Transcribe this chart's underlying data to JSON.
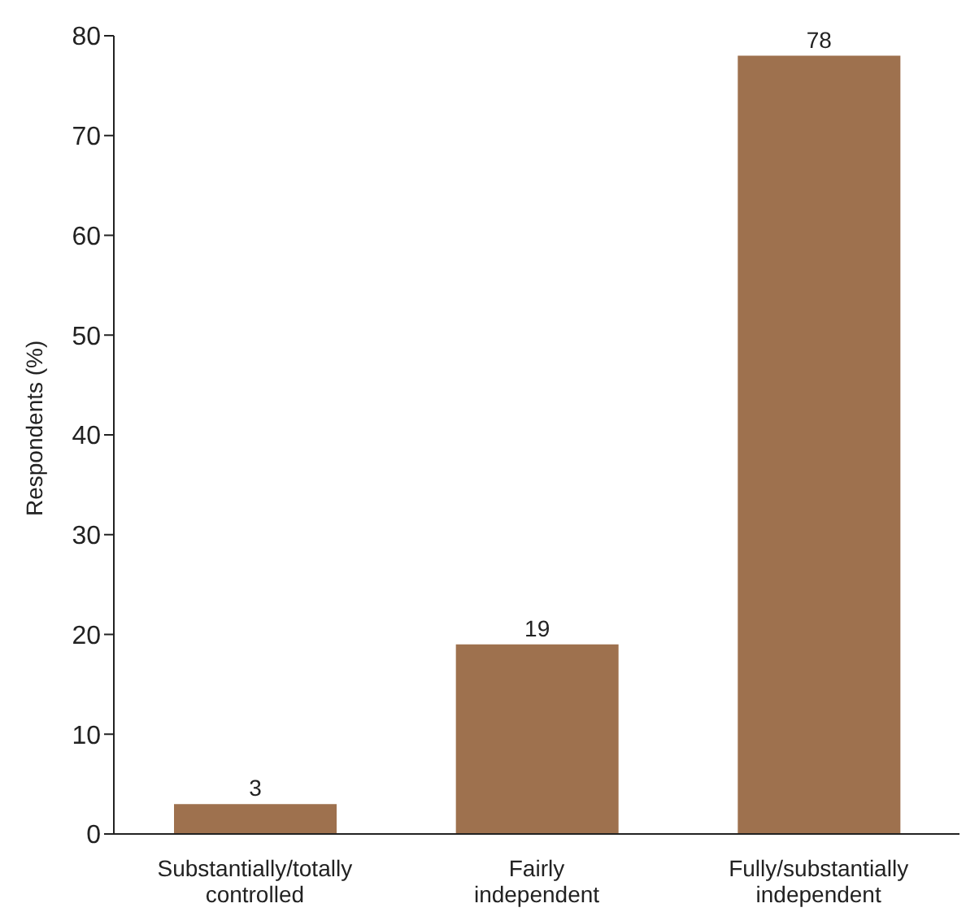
{
  "chart_data": {
    "type": "bar",
    "ylabel": "Respondents (%)",
    "categories": [
      "Substantially/totally controlled",
      "Fairly independent",
      "Fully/substantially independent"
    ],
    "values": [
      3,
      19,
      78
    ],
    "color": "#9e714e",
    "ylim": [
      0,
      80
    ],
    "yticks": [
      0,
      10,
      20,
      30,
      40,
      50,
      60,
      70,
      80
    ],
    "grid": false,
    "data_labels": true
  }
}
